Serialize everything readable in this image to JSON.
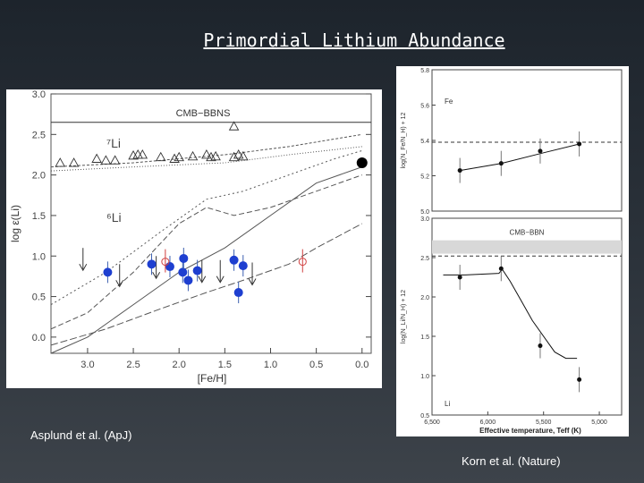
{
  "slide": {
    "title": "Primordial Lithium Abundance",
    "caption_left": "Asplund et al. (ApJ)",
    "caption_right": "Korn et al. (Nature)"
  },
  "chart_data": [
    {
      "type": "scatter",
      "xlabel": "[Fe/H]",
      "ylabel": "log ε(Li)",
      "xlim": [
        3.4,
        -0.1
      ],
      "ylim": [
        -0.2,
        3.0
      ],
      "x_ticks": [
        "3.0",
        "2.5",
        "2.0",
        "1.5",
        "1.0",
        "0.5",
        "0.0"
      ],
      "y_ticks": [
        "0.0",
        "0.5",
        "1.0",
        "1.5",
        "2.0",
        "2.5",
        "3.0"
      ],
      "annotations": [
        "CMB−BBNS",
        "⁷Li",
        "⁶Li"
      ],
      "cmb_bbns_level": 2.65,
      "li7_points": [
        {
          "x": 3.3,
          "y": 2.15
        },
        {
          "x": 3.15,
          "y": 2.15
        },
        {
          "x": 2.9,
          "y": 2.2
        },
        {
          "x": 2.8,
          "y": 2.18
        },
        {
          "x": 2.7,
          "y": 2.18
        },
        {
          "x": 2.5,
          "y": 2.24
        },
        {
          "x": 2.45,
          "y": 2.25
        },
        {
          "x": 2.4,
          "y": 2.25
        },
        {
          "x": 2.2,
          "y": 2.22
        },
        {
          "x": 2.05,
          "y": 2.2
        },
        {
          "x": 2.0,
          "y": 2.22
        },
        {
          "x": 1.85,
          "y": 2.23
        },
        {
          "x": 1.7,
          "y": 2.25
        },
        {
          "x": 1.65,
          "y": 2.22
        },
        {
          "x": 1.6,
          "y": 2.23
        },
        {
          "x": 1.4,
          "y": 2.22
        },
        {
          "x": 1.35,
          "y": 2.25
        },
        {
          "x": 1.3,
          "y": 2.23
        },
        {
          "x": 1.4,
          "y": 2.6
        }
      ],
      "li6_detections": [
        {
          "x": 2.78,
          "y": 0.8
        },
        {
          "x": 2.3,
          "y": 0.9
        },
        {
          "x": 2.1,
          "y": 0.87
        },
        {
          "x": 1.96,
          "y": 0.8
        },
        {
          "x": 1.9,
          "y": 0.7
        },
        {
          "x": 1.95,
          "y": 0.97
        },
        {
          "x": 1.8,
          "y": 0.82
        },
        {
          "x": 1.4,
          "y": 0.95
        },
        {
          "x": 1.35,
          "y": 0.55
        },
        {
          "x": 1.3,
          "y": 0.88
        }
      ],
      "li6_red": [
        {
          "x": 2.15,
          "y": 0.93
        },
        {
          "x": 0.65,
          "y": 0.93
        }
      ],
      "upper_limits": [
        {
          "x": 3.05,
          "y": 1.1
        },
        {
          "x": 2.65,
          "y": 0.9
        },
        {
          "x": 2.25,
          "y": 1.0
        },
        {
          "x": 1.75,
          "y": 0.95
        },
        {
          "x": 1.55,
          "y": 0.95
        },
        {
          "x": 1.2,
          "y": 0.92
        }
      ],
      "sun": {
        "x": 0.0,
        "y": 2.15
      }
    },
    {
      "type": "line",
      "xlabel": "Effective temperature, Teff (K)",
      "x_ticks": [
        "6,500",
        "6,000",
        "5,500",
        "5,000"
      ],
      "panels": [
        {
          "label": "Fe",
          "ylabel": "log(N_Fe/N_H) + 12",
          "ylim": [
            5.0,
            5.8
          ],
          "y_ticks": [
            "5.0",
            "5.2",
            "5.4",
            "5.6",
            "5.8"
          ],
          "reference_level": 5.39,
          "model_x": [
            6250,
            5880,
            5500,
            5180
          ],
          "model_y": [
            5.23,
            5.27,
            5.33,
            5.38
          ],
          "points": [
            {
              "x": 6250,
              "y": 5.23
            },
            {
              "x": 5880,
              "y": 5.27
            },
            {
              "x": 5530,
              "y": 5.34
            },
            {
              "x": 5180,
              "y": 5.38
            }
          ]
        },
        {
          "label": "Li",
          "ylabel": "log(N_Li/N_H) + 12",
          "ylim": [
            0.5,
            3.0
          ],
          "y_ticks": [
            "0.5",
            "1.0",
            "1.5",
            "2.0",
            "2.5",
            "3.0"
          ],
          "band_label": "CMB−BBN",
          "band": [
            2.55,
            2.72
          ],
          "reference_level": 2.52,
          "model_x": [
            6400,
            6200,
            5900,
            5870,
            5800,
            5700,
            5600,
            5400,
            5300,
            5200
          ],
          "model_y": [
            2.28,
            2.28,
            2.3,
            2.35,
            2.2,
            1.95,
            1.7,
            1.3,
            1.22,
            1.22
          ],
          "points": [
            {
              "x": 6250,
              "y": 2.25
            },
            {
              "x": 5880,
              "y": 2.36
            },
            {
              "x": 5530,
              "y": 1.38
            },
            {
              "x": 5180,
              "y": 0.95
            }
          ]
        }
      ]
    }
  ]
}
